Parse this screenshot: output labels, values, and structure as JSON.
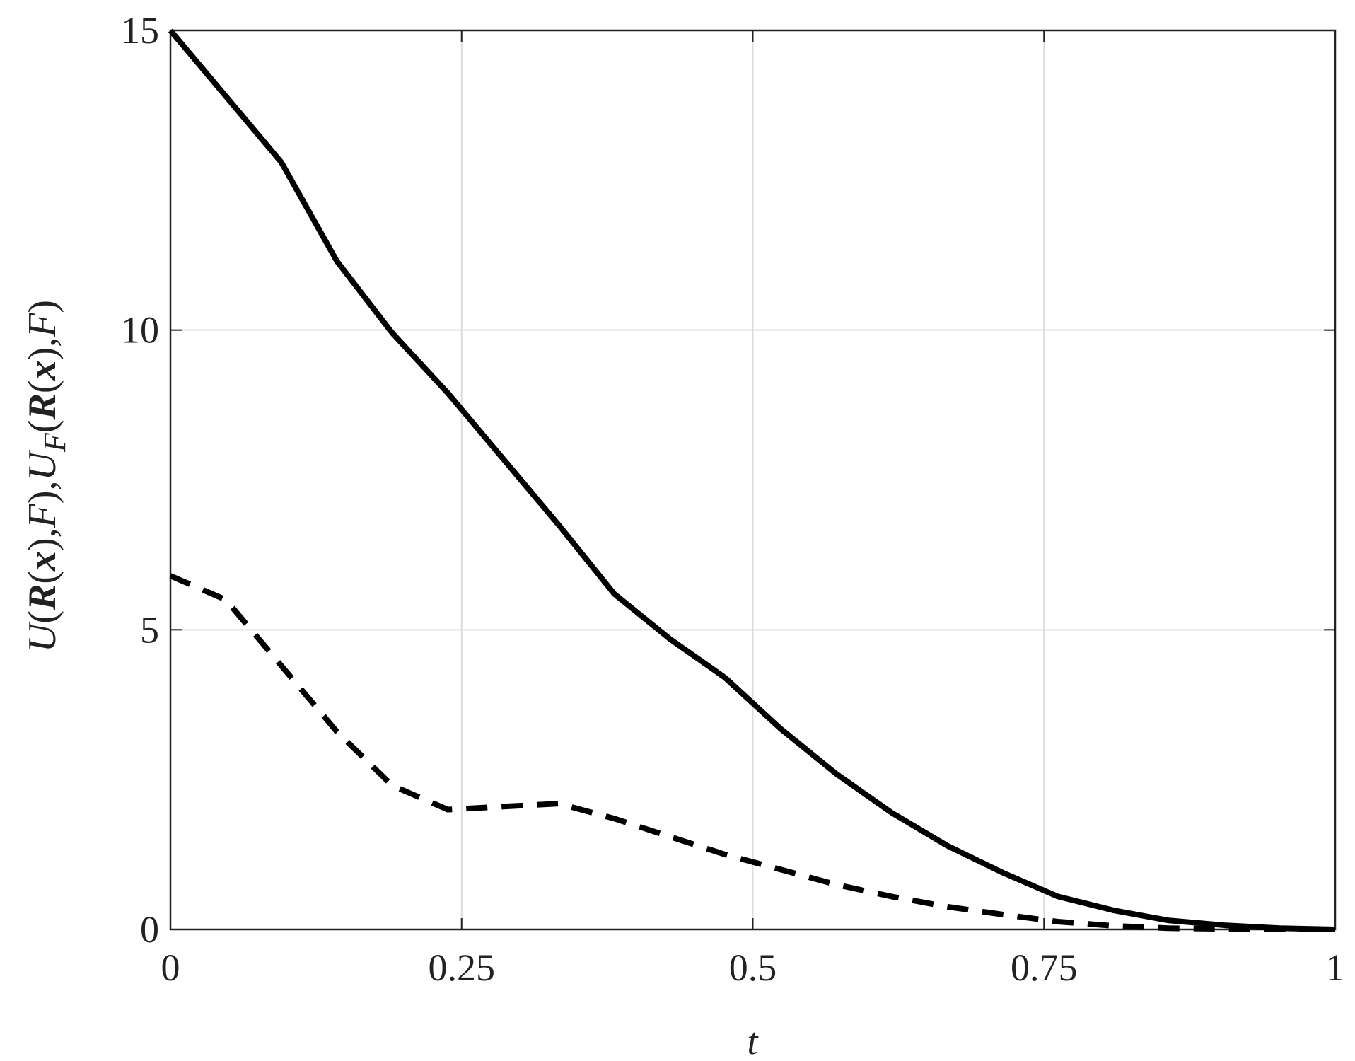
{
  "chart_data": {
    "type": "line",
    "xlabel": "t",
    "ylabel_parts": [
      "U",
      "(",
      "R",
      "(",
      "x",
      "),",
      "F",
      "),",
      "U",
      "F",
      "(",
      "R",
      "(",
      "x",
      "),",
      "F",
      ")"
    ],
    "x": [
      0,
      0.0476,
      0.0952,
      0.1429,
      0.1905,
      0.2381,
      0.2857,
      0.3333,
      0.381,
      0.4286,
      0.4762,
      0.5238,
      0.5714,
      0.619,
      0.6667,
      0.7143,
      0.7619,
      0.8095,
      0.8571,
      0.9048,
      0.9524,
      1
    ],
    "series": [
      {
        "color": "#000000",
        "line_style": "solid",
        "values": [
          15,
          13.9,
          12.8,
          11.15,
          9.95,
          8.95,
          7.85,
          6.75,
          5.6,
          4.85,
          4.2,
          3.35,
          2.6,
          1.95,
          1.4,
          0.95,
          0.55,
          0.32,
          0.15,
          0.07,
          0.02,
          0
        ]
      },
      {
        "color": "#000000",
        "line_style": "dashed",
        "values": [
          5.9,
          5.5,
          4.4,
          3.3,
          2.4,
          2.0,
          2.05,
          2.1,
          1.85,
          1.55,
          1.25,
          1.0,
          0.75,
          0.55,
          0.38,
          0.25,
          0.13,
          0.06,
          0.02,
          0.01,
          0,
          0
        ]
      }
    ],
    "xlim": [
      0,
      1
    ],
    "xticks": [
      0,
      0.25,
      0.5,
      0.75,
      1
    ],
    "ylim": [
      0,
      15
    ],
    "yticks": [
      0,
      5,
      10,
      15
    ],
    "grid": true
  }
}
